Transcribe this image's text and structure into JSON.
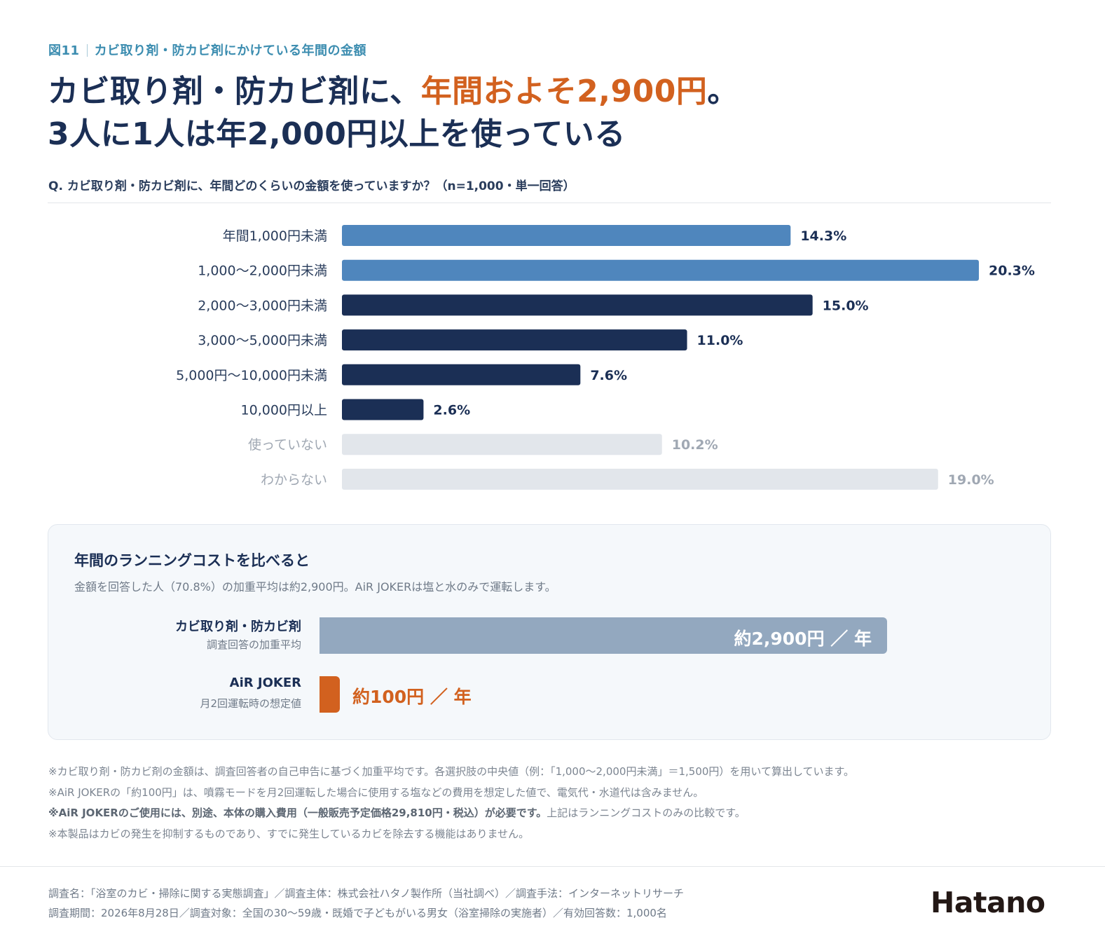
{
  "header": {
    "figure_number": "図11",
    "figure_title": "カビ取り剤・防カビ剤にかけている年間の金額",
    "headline_line1_a": "カビ取り剤・防カビ剤に、",
    "headline_line1_accent": "年間およそ2,900円",
    "headline_line1_b": "。",
    "headline_line2": "3人に1人は年2,000円以上を使っている",
    "question": "Q. カビ取り剤・防カビ剤に、年間どのくらいの金額を使っていますか？（n=1,000・単一回答）"
  },
  "colors": {
    "light_blue": "#4f86bd",
    "navy": "#1b2f55",
    "grey_bar": "#e2e6eb",
    "grey_text": "#a0a8b3",
    "accent_orange": "#d2611f",
    "compare_bar": "#93a8bf"
  },
  "chart_data": {
    "type": "bar",
    "orientation": "horizontal",
    "categories": [
      "年間1,000円未満",
      "1,000〜2,000円未満",
      "2,000〜3,000円未満",
      "3,000〜5,000円未満",
      "5,000円〜10,000円未満",
      "10,000円以上",
      "使っていない",
      "わからない"
    ],
    "values": [
      14.3,
      20.3,
      15.0,
      11.0,
      7.6,
      2.6,
      10.2,
      19.0
    ],
    "value_labels": [
      "14.3%",
      "20.3%",
      "15.0%",
      "11.0%",
      "7.6%",
      "2.6%",
      "10.2%",
      "19.0%"
    ],
    "bar_groups": [
      "light",
      "light",
      "navy",
      "navy",
      "navy",
      "navy",
      "grey",
      "grey"
    ],
    "unit": "%",
    "grid": false,
    "legend": "none"
  },
  "comparison": {
    "title": "年間のランニングコストを比べると",
    "subtitle": "金額を回答した人（70.8%）の加重平均は約2,900円。AiR JOKERは塩と水のみで運転します。",
    "items": [
      {
        "name": "カビ取り剤・防カビ剤",
        "note": "調査回答の加重平均",
        "value": 2900,
        "label": "約2,900円 ／ 年"
      },
      {
        "name": "AiR JOKER",
        "note": "月2回運転時の想定値",
        "value": 100,
        "label": "約100円 ／ 年"
      }
    ]
  },
  "notes": {
    "n1": "※カビ取り剤・防カビ剤の金額は、調査回答者の自己申告に基づく加重平均です。各選択肢の中央値（例：「1,000〜2,000円未満」＝1,500円）を用いて算出しています。",
    "n2": "※AiR JOKERの「約100円」は、噴霧モードを月2回運転した場合に使用する塩などの費用を想定した値で、電気代・水道代は含みません。",
    "n3_bold": "※AiR JOKERのご使用には、別途、本体の購入費用（一般販売予定価格29,810円・税込）が必要です。",
    "n3_rest": "上記はランニングコストのみの比較です。",
    "n4": "※本製品はカビの発生を抑制するものであり、すでに発生しているカビを除去する機能はありません。"
  },
  "footer": {
    "line1": "調査名：「浴室のカビ・掃除に関する実態調査」／調査主体：株式会社ハタノ製作所（当社調べ）／調査手法：インターネットリサーチ",
    "line2": "調査期間：2026年8月28日／調査対象：全国の30〜59歳・既婚で子どもがいる男女（浴室掃除の実施者）／有効回答数：1,000名",
    "logo": "Hatano"
  }
}
